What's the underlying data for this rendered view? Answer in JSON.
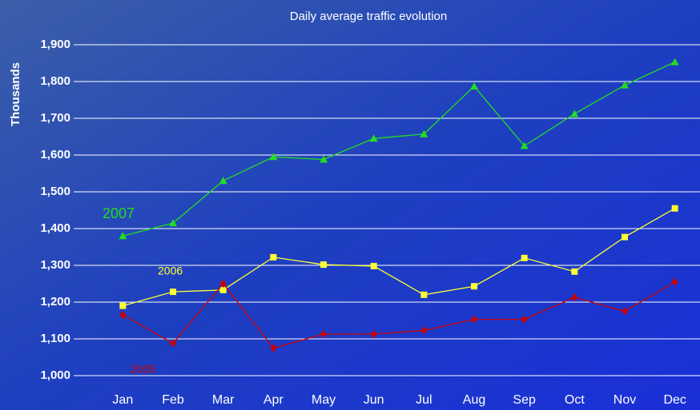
{
  "chart_data": {
    "type": "line",
    "title": "Daily average traffic evolution",
    "y_label": "Thousands",
    "categories": [
      "Jan",
      "Feb",
      "Mar",
      "Apr",
      "May",
      "Jun",
      "Jul",
      "Aug",
      "Sep",
      "Oct",
      "Nov",
      "Dec"
    ],
    "series": [
      {
        "name": "2007",
        "color": "#22dd22",
        "marker": "triangle",
        "values": [
          1380,
          1415,
          1530,
          1595,
          1588,
          1645,
          1657,
          1787,
          1625,
          1712,
          1790,
          1853
        ]
      },
      {
        "name": "2006",
        "color": "#ffff33",
        "marker": "square",
        "values": [
          1190,
          1228,
          1233,
          1322,
          1302,
          1298,
          1220,
          1243,
          1320,
          1283,
          1377,
          1455
        ]
      },
      {
        "name": "2005",
        "color": "#cc0000",
        "marker": "diamond",
        "values": [
          1165,
          1088,
          1250,
          1075,
          1113,
          1113,
          1123,
          1153,
          1153,
          1213,
          1175,
          1255
        ]
      }
    ],
    "ylim": [
      1000,
      1900
    ],
    "yticks": [
      {
        "value": 1000,
        "label": "1,000"
      },
      {
        "value": 1100,
        "label": "1,100"
      },
      {
        "value": 1200,
        "label": "1,200"
      },
      {
        "value": 1300,
        "label": "1,300"
      },
      {
        "value": 1400,
        "label": "1,400"
      },
      {
        "value": 1500,
        "label": "1,500"
      },
      {
        "value": 1600,
        "label": "1,600"
      },
      {
        "value": 1700,
        "label": "1,700"
      },
      {
        "value": 1800,
        "label": "1,800"
      },
      {
        "value": 1900,
        "label": "1,900"
      }
    ],
    "grid": true
  }
}
